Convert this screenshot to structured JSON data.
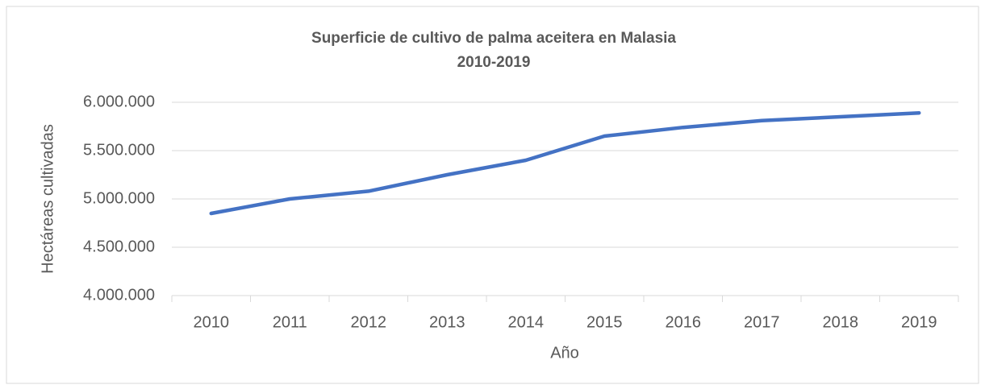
{
  "chart_data": {
    "type": "line",
    "title": "Superficie de cultivo de palma aceitera en Malasia",
    "subtitle": "2010-2019",
    "x_label": "Año",
    "y_label": "Hectáreas cultivadas",
    "categories": [
      "2010",
      "2011",
      "2012",
      "2013",
      "2014",
      "2015",
      "2016",
      "2017",
      "2018",
      "2019"
    ],
    "series": [
      {
        "name": "Hectáreas cultivadas",
        "color": "#4472c4",
        "values": [
          4850000,
          5000000,
          5080000,
          5250000,
          5400000,
          5650000,
          5740000,
          5810000,
          5850000,
          5890000
        ]
      }
    ],
    "ylim": [
      4000000,
      6000000
    ],
    "yticks": [
      {
        "value": 4000000,
        "label": "4.000.000"
      },
      {
        "value": 4500000,
        "label": "4.500.000"
      },
      {
        "value": 5000000,
        "label": "5.000.000"
      },
      {
        "value": 5500000,
        "label": "5.500.000"
      },
      {
        "value": 6000000,
        "label": "6.000.000"
      }
    ],
    "grid": true
  }
}
